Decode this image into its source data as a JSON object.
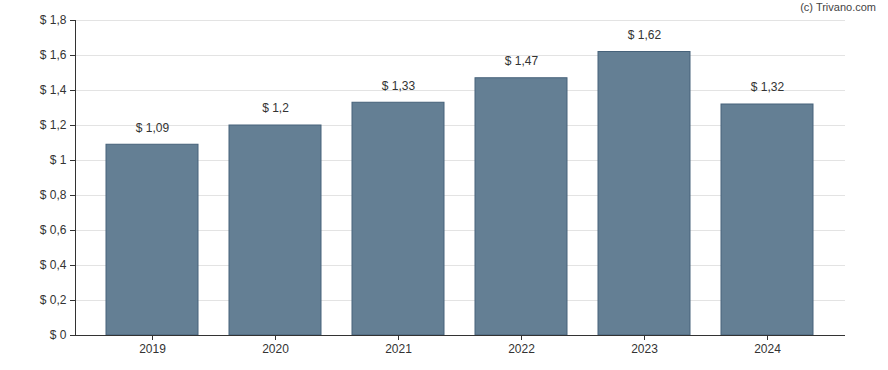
{
  "chart_data": {
    "type": "bar",
    "categories": [
      "2019",
      "2020",
      "2021",
      "2022",
      "2023",
      "2024"
    ],
    "values": [
      1.09,
      1.2,
      1.33,
      1.47,
      1.62,
      1.32
    ],
    "value_labels": [
      "$ 1,09",
      "$ 1,2",
      "$ 1,33",
      "$ 1,47",
      "$ 1,62",
      "$ 1,32"
    ],
    "data_labels": true,
    "color": "#647f94",
    "ylim": [
      0,
      1.8
    ],
    "yticks": [
      {
        "value": 0,
        "label": "$ 0"
      },
      {
        "value": 0.2,
        "label": "$ 0,2"
      },
      {
        "value": 0.4,
        "label": "$ 0,4"
      },
      {
        "value": 0.6,
        "label": "$ 0,6"
      },
      {
        "value": 0.8,
        "label": "$ 0,8"
      },
      {
        "value": 1,
        "label": "$ 1"
      },
      {
        "value": 1.2,
        "label": "$ 1,2"
      },
      {
        "value": 1.4,
        "label": "$ 1,4"
      },
      {
        "value": 1.6,
        "label": "$ 1,6"
      },
      {
        "value": 1.8,
        "label": "$ 1,8"
      }
    ],
    "grid": true,
    "annotations": [
      "(c) Trivano.com"
    ]
  }
}
